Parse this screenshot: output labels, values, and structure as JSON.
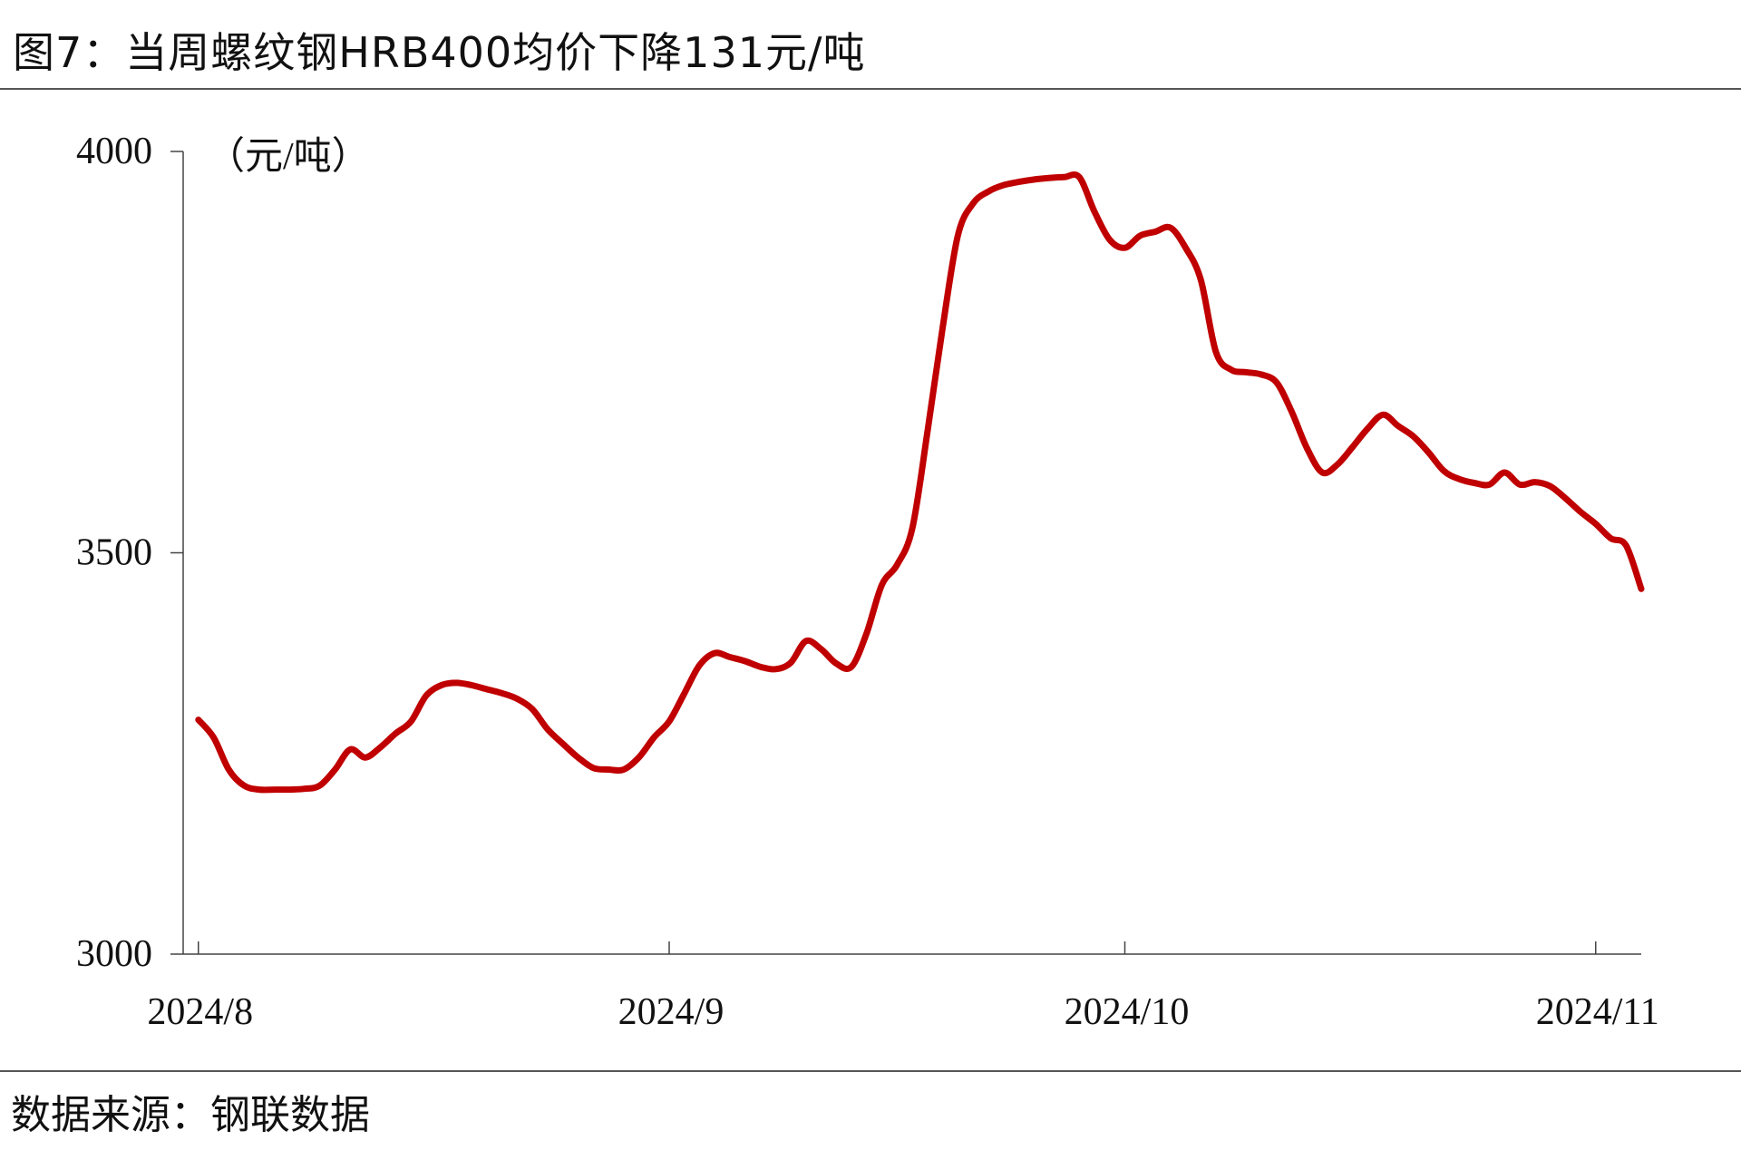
{
  "figure": {
    "title": "图7：当周螺纹钢HRB400均价下降131元/吨",
    "source": "数据来源：钢联数据"
  },
  "chart_data": {
    "type": "line",
    "unit_label": "（元/吨）",
    "ylim": [
      3000,
      4000
    ],
    "yticks": [
      3000,
      3500,
      4000
    ],
    "xlim": [
      "2024-07-31",
      "2024-11-04"
    ],
    "xticks": [
      {
        "date": "2024-08-01",
        "label": "2024/8"
      },
      {
        "date": "2024-09-01",
        "label": "2024/9"
      },
      {
        "date": "2024-10-01",
        "label": "2024/10"
      },
      {
        "date": "2024-11-01",
        "label": "2024/11"
      }
    ],
    "grid": false,
    "series": [
      {
        "color": "#c00000",
        "points": [
          [
            "2024-08-01",
            3292
          ],
          [
            "2024-08-02",
            3270
          ],
          [
            "2024-08-03",
            3230
          ],
          [
            "2024-08-04",
            3210
          ],
          [
            "2024-08-05",
            3205
          ],
          [
            "2024-08-06",
            3205
          ],
          [
            "2024-08-07",
            3205
          ],
          [
            "2024-08-08",
            3206
          ],
          [
            "2024-08-09",
            3210
          ],
          [
            "2024-08-10",
            3230
          ],
          [
            "2024-08-11",
            3255
          ],
          [
            "2024-08-12",
            3245
          ],
          [
            "2024-08-13",
            3258
          ],
          [
            "2024-08-14",
            3275
          ],
          [
            "2024-08-15",
            3290
          ],
          [
            "2024-08-16",
            3322
          ],
          [
            "2024-08-17",
            3335
          ],
          [
            "2024-08-18",
            3338
          ],
          [
            "2024-08-19",
            3335
          ],
          [
            "2024-08-20",
            3330
          ],
          [
            "2024-08-21",
            3325
          ],
          [
            "2024-08-22",
            3318
          ],
          [
            "2024-08-23",
            3305
          ],
          [
            "2024-08-24",
            3280
          ],
          [
            "2024-08-25",
            3262
          ],
          [
            "2024-08-26",
            3245
          ],
          [
            "2024-08-27",
            3232
          ],
          [
            "2024-08-28",
            3230
          ],
          [
            "2024-08-29",
            3230
          ],
          [
            "2024-08-30",
            3245
          ],
          [
            "2024-08-31",
            3270
          ],
          [
            "2024-09-01",
            3290
          ],
          [
            "2024-09-02",
            3325
          ],
          [
            "2024-09-03",
            3360
          ],
          [
            "2024-09-04",
            3375
          ],
          [
            "2024-09-05",
            3370
          ],
          [
            "2024-09-06",
            3365
          ],
          [
            "2024-09-07",
            3358
          ],
          [
            "2024-09-08",
            3355
          ],
          [
            "2024-09-09",
            3363
          ],
          [
            "2024-09-10",
            3390
          ],
          [
            "2024-09-11",
            3380
          ],
          [
            "2024-09-12",
            3362
          ],
          [
            "2024-09-13",
            3358
          ],
          [
            "2024-09-14",
            3400
          ],
          [
            "2024-09-15",
            3460
          ],
          [
            "2024-09-16",
            3485
          ],
          [
            "2024-09-17",
            3530
          ],
          [
            "2024-09-18",
            3650
          ],
          [
            "2024-09-19",
            3780
          ],
          [
            "2024-09-20",
            3895
          ],
          [
            "2024-09-21",
            3935
          ],
          [
            "2024-09-22",
            3950
          ],
          [
            "2024-09-23",
            3958
          ],
          [
            "2024-09-24",
            3962
          ],
          [
            "2024-09-25",
            3965
          ],
          [
            "2024-09-26",
            3967
          ],
          [
            "2024-09-27",
            3968
          ],
          [
            "2024-09-28",
            3968
          ],
          [
            "2024-09-29",
            3925
          ],
          [
            "2024-09-30",
            3890
          ],
          [
            "2024-10-01",
            3880
          ],
          [
            "2024-10-02",
            3895
          ],
          [
            "2024-10-03",
            3900
          ],
          [
            "2024-10-04",
            3905
          ],
          [
            "2024-10-05",
            3880
          ],
          [
            "2024-10-06",
            3840
          ],
          [
            "2024-10-07",
            3750
          ],
          [
            "2024-10-08",
            3728
          ],
          [
            "2024-10-09",
            3725
          ],
          [
            "2024-10-10",
            3722
          ],
          [
            "2024-10-11",
            3712
          ],
          [
            "2024-10-12",
            3675
          ],
          [
            "2024-10-13",
            3630
          ],
          [
            "2024-10-14",
            3600
          ],
          [
            "2024-10-15",
            3610
          ],
          [
            "2024-10-16",
            3632
          ],
          [
            "2024-10-17",
            3655
          ],
          [
            "2024-10-18",
            3672
          ],
          [
            "2024-10-19",
            3658
          ],
          [
            "2024-10-20",
            3645
          ],
          [
            "2024-10-21",
            3625
          ],
          [
            "2024-10-22",
            3602
          ],
          [
            "2024-10-23",
            3592
          ],
          [
            "2024-10-24",
            3587
          ],
          [
            "2024-10-25",
            3585
          ],
          [
            "2024-10-26",
            3600
          ],
          [
            "2024-10-27",
            3585
          ],
          [
            "2024-10-28",
            3588
          ],
          [
            "2024-10-29",
            3583
          ],
          [
            "2024-10-30",
            3568
          ],
          [
            "2024-10-31",
            3551
          ],
          [
            "2024-11-01",
            3536
          ],
          [
            "2024-11-02",
            3518
          ],
          [
            "2024-11-03",
            3509
          ],
          [
            "2024-11-04",
            3455
          ]
        ]
      }
    ]
  }
}
